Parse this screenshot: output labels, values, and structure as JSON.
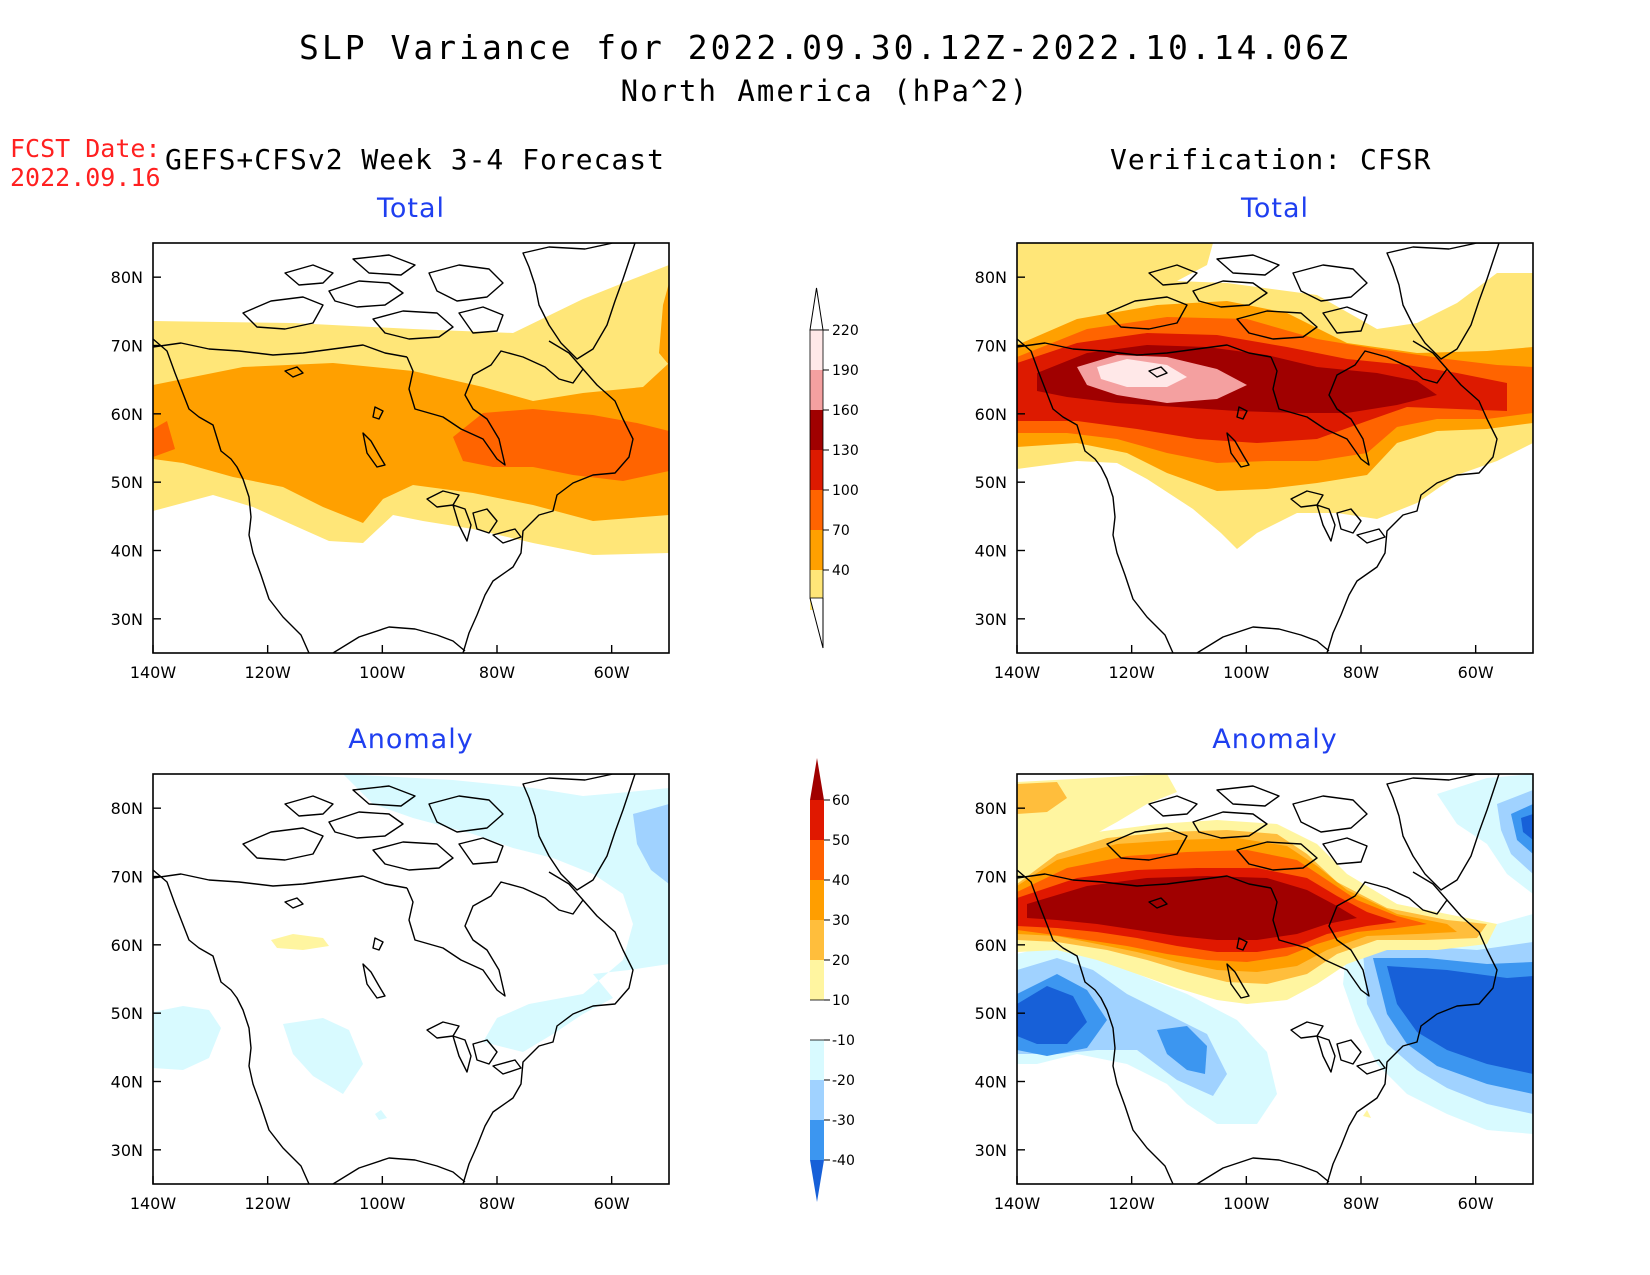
{
  "header": {
    "title": "SLP Variance for 2022.09.30.12Z-2022.10.14.06Z",
    "subtitle": "North America (hPa^2)",
    "fcst_date_label": "FCST Date:",
    "fcst_date_value": "2022.09.16",
    "left_column_title": "GEFS+CFSv2 Week 3-4 Forecast",
    "right_column_title": "Verification: CFSR"
  },
  "panels": {
    "forecast_total": {
      "title": "Total"
    },
    "verification_total": {
      "title": "Total"
    },
    "forecast_anomaly": {
      "title": "Anomaly"
    },
    "verification_anomaly": {
      "title": "Anomaly"
    }
  },
  "axes": {
    "lon_ticks": [
      "140W",
      "120W",
      "100W",
      "80W",
      "60W"
    ],
    "lat_ticks": [
      "80N",
      "70N",
      "60N",
      "50N",
      "40N",
      "30N"
    ],
    "lon_values": [
      -140,
      -120,
      -100,
      -80,
      -60
    ],
    "lat_values": [
      80,
      70,
      60,
      50,
      40,
      30
    ],
    "lon_range": [
      -140,
      -50
    ],
    "lat_range": [
      25,
      85
    ]
  },
  "total_colorbar": {
    "labels": [
      "220",
      "190",
      "160",
      "130",
      "100",
      "70",
      "40"
    ],
    "colors": [
      "#ffe8e8",
      "#f4a0a0",
      "#a00000",
      "#dd1a00",
      "#ff6400",
      "#ffa000",
      "#ffe678"
    ]
  },
  "anomaly_colorbar": {
    "labels": [
      "60",
      "50",
      "40",
      "30",
      "20",
      "10",
      "-10",
      "-20",
      "-30",
      "-40"
    ],
    "colors": [
      "#a00000",
      "#e01800",
      "#ff6000",
      "#ff9e00",
      "#ffbe3c",
      "#fff5a0",
      "#ffffff",
      "#d8faff",
      "#a0d2ff",
      "#3c96f0",
      "#1760d8"
    ]
  },
  "colors": {
    "title_blue": "#1f3ff0",
    "fcst_red": "#ff2020"
  }
}
